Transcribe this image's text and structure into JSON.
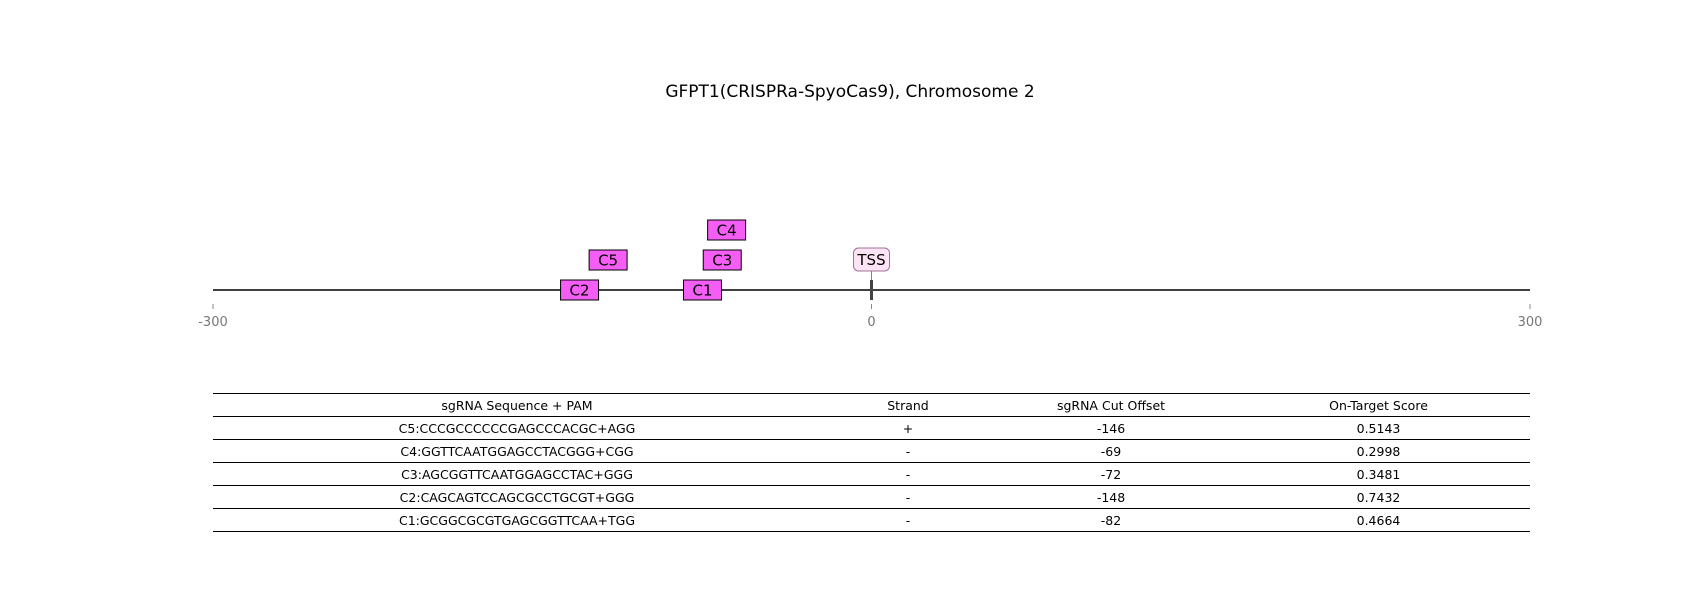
{
  "title": "GFPT1(CRISPRa-SpyoCas9), Chromosome 2",
  "axis": {
    "min": -300,
    "max": 300,
    "ticks": [
      {
        "value": -300,
        "label": "-300"
      },
      {
        "value": 0,
        "label": "0"
      },
      {
        "value": 300,
        "label": "300"
      }
    ]
  },
  "tss": {
    "label": "TSS",
    "position": 0,
    "fill": "#fce4f4",
    "stroke": "#a0709a"
  },
  "guide_color": "#f55ef5",
  "guides": [
    {
      "label": "C2",
      "position": -133,
      "row": 0
    },
    {
      "label": "C1",
      "position": -77,
      "row": 0
    },
    {
      "label": "C5",
      "position": -120,
      "row": 1
    },
    {
      "label": "C3",
      "position": -68,
      "row": 1
    },
    {
      "label": "C4",
      "position": -66,
      "row": 2
    }
  ],
  "table": {
    "headers": [
      "sgRNA Sequence + PAM",
      "Strand",
      "sgRNA Cut Offset",
      "On-Target Score"
    ],
    "rows": [
      [
        "C5:CCCGCCCCCCGAGCCCACGC+AGG",
        "+",
        "-146",
        "0.5143"
      ],
      [
        "C4:GGTTCAATGGAGCCTACGGG+CGG",
        "-",
        "-69",
        "0.2998"
      ],
      [
        "C3:AGCGGTTCAATGGAGCCTAC+GGG",
        "-",
        "-72",
        "0.3481"
      ],
      [
        "C2:CAGCAGTCCAGCGCCTGCGT+GGG",
        "-",
        "-148",
        "0.7432"
      ],
      [
        "C1:GCGGCGCGTGAGCGGTTCAA+TGG",
        "-",
        "-82",
        "0.4664"
      ]
    ]
  }
}
